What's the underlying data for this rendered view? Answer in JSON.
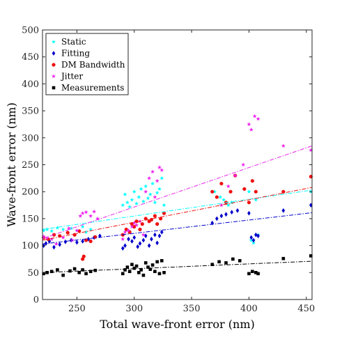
{
  "chart_data": {
    "type": "scatter",
    "title": "",
    "xlabel": "Total wave-front error (nm)",
    "ylabel": "Wave-front error (nm)",
    "xlim": [
      220,
      455
    ],
    "ylim": [
      0,
      500
    ],
    "xticks": [
      "250",
      "300",
      "350",
      "400",
      "450"
    ],
    "yticks": [
      "0",
      "50",
      "100",
      "150",
      "200",
      "250",
      "300",
      "350",
      "400",
      "450",
      "500"
    ],
    "xtick_values": [
      250,
      300,
      350,
      400,
      450
    ],
    "ytick_values": [
      0,
      50,
      100,
      150,
      200,
      250,
      300,
      350,
      400,
      450,
      500
    ],
    "grid": false,
    "legend_position": "top-left",
    "series": [
      {
        "name": "Static",
        "color": "#00ffff",
        "marker": "star",
        "points": [
          [
            221,
            128
          ],
          [
            224,
            130
          ],
          [
            228,
            127
          ],
          [
            233,
            133
          ],
          [
            238,
            130
          ],
          [
            245,
            132
          ],
          [
            250,
            128
          ],
          [
            255,
            135
          ],
          [
            258,
            125
          ],
          [
            262,
            130
          ],
          [
            290,
            175
          ],
          [
            292,
            195
          ],
          [
            294,
            180
          ],
          [
            296,
            172
          ],
          [
            298,
            185
          ],
          [
            300,
            200
          ],
          [
            302,
            178
          ],
          [
            304,
            190
          ],
          [
            306,
            205
          ],
          [
            308,
            182
          ],
          [
            310,
            210
          ],
          [
            312,
            188
          ],
          [
            314,
            195
          ],
          [
            316,
            215
          ],
          [
            318,
            180
          ],
          [
            320,
            198
          ],
          [
            322,
            205
          ],
          [
            324,
            225
          ],
          [
            326,
            175
          ],
          [
            370,
            200
          ],
          [
            375,
            190
          ],
          [
            378,
            185
          ],
          [
            382,
            175
          ],
          [
            385,
            180
          ],
          [
            400,
            200
          ],
          [
            402,
            110
          ],
          [
            404,
            105
          ],
          [
            406,
            185
          ],
          [
            408,
            120
          ],
          [
            454,
            200
          ]
        ],
        "trend": [
          [
            220,
            130
          ],
          [
            455,
            203
          ]
        ]
      },
      {
        "name": "Fitting",
        "color": "#0000cc",
        "marker": "diamond",
        "points": [
          [
            221,
            100
          ],
          [
            223,
            104
          ],
          [
            226,
            108
          ],
          [
            230,
            97
          ],
          [
            235,
            102
          ],
          [
            240,
            107
          ],
          [
            245,
            110
          ],
          [
            250,
            106
          ],
          [
            255,
            108
          ],
          [
            260,
            112
          ],
          [
            265,
            115
          ],
          [
            270,
            118
          ],
          [
            290,
            95
          ],
          [
            292,
            100
          ],
          [
            295,
            112
          ],
          [
            298,
            108
          ],
          [
            300,
            115
          ],
          [
            303,
            98
          ],
          [
            305,
            104
          ],
          [
            308,
            110
          ],
          [
            310,
            118
          ],
          [
            313,
            100
          ],
          [
            315,
            112
          ],
          [
            318,
            120
          ],
          [
            320,
            105
          ],
          [
            322,
            118
          ],
          [
            324,
            125
          ],
          [
            368,
            142
          ],
          [
            372,
            150
          ],
          [
            376,
            155
          ],
          [
            380,
            158
          ],
          [
            385,
            162
          ],
          [
            390,
            165
          ],
          [
            400,
            160
          ],
          [
            402,
            115
          ],
          [
            404,
            110
          ],
          [
            406,
            120
          ],
          [
            408,
            118
          ],
          [
            430,
            165
          ],
          [
            454,
            175
          ]
        ],
        "trend": [
          [
            220,
            103
          ],
          [
            455,
            161
          ]
        ]
      },
      {
        "name": "DM Bandwidth",
        "color": "#ee1111",
        "marker": "circle",
        "points": [
          [
            221,
            115
          ],
          [
            225,
            112
          ],
          [
            230,
            120
          ],
          [
            235,
            118
          ],
          [
            242,
            124
          ],
          [
            248,
            120
          ],
          [
            252,
            127
          ],
          [
            255,
            75
          ],
          [
            256,
            80
          ],
          [
            258,
            110
          ],
          [
            262,
            108
          ],
          [
            266,
            116
          ],
          [
            290,
            120
          ],
          [
            293,
            130
          ],
          [
            296,
            125
          ],
          [
            298,
            140
          ],
          [
            300,
            135
          ],
          [
            302,
            145
          ],
          [
            305,
            130
          ],
          [
            307,
            140
          ],
          [
            310,
            150
          ],
          [
            313,
            145
          ],
          [
            315,
            148
          ],
          [
            318,
            155
          ],
          [
            320,
            140
          ],
          [
            323,
            150
          ],
          [
            326,
            160
          ],
          [
            368,
            200
          ],
          [
            372,
            190
          ],
          [
            376,
            215
          ],
          [
            380,
            180
          ],
          [
            384,
            200
          ],
          [
            388,
            230
          ],
          [
            396,
            205
          ],
          [
            400,
            180
          ],
          [
            403,
            220
          ],
          [
            406,
            200
          ],
          [
            430,
            200
          ],
          [
            454,
            228
          ]
        ],
        "trend": [
          [
            220,
            110
          ],
          [
            455,
            208
          ]
        ]
      },
      {
        "name": "Jitter",
        "color": "#ee22ee",
        "marker": "star",
        "points": [
          [
            221,
            117
          ],
          [
            224,
            114
          ],
          [
            228,
            112
          ],
          [
            232,
            103
          ],
          [
            238,
            115
          ],
          [
            243,
            132
          ],
          [
            246,
            110
          ],
          [
            250,
            128
          ],
          [
            253,
            155
          ],
          [
            255,
            160
          ],
          [
            258,
            162
          ],
          [
            262,
            155
          ],
          [
            265,
            163
          ],
          [
            268,
            150
          ],
          [
            290,
            112
          ],
          [
            292,
            125
          ],
          [
            295,
            128
          ],
          [
            298,
            135
          ],
          [
            300,
            142
          ],
          [
            302,
            138
          ],
          [
            305,
            145
          ],
          [
            308,
            120
          ],
          [
            310,
            200
          ],
          [
            313,
            225
          ],
          [
            316,
            237
          ],
          [
            318,
            190
          ],
          [
            320,
            220
          ],
          [
            322,
            245
          ],
          [
            324,
            240
          ],
          [
            376,
            175
          ],
          [
            382,
            210
          ],
          [
            388,
            230
          ],
          [
            395,
            250
          ],
          [
            400,
            325
          ],
          [
            402,
            315
          ],
          [
            405,
            340
          ],
          [
            408,
            335
          ],
          [
            430,
            285
          ],
          [
            454,
            277
          ]
        ],
        "trend": [
          [
            220,
            113
          ],
          [
            455,
            285
          ]
        ]
      },
      {
        "name": "Measurements",
        "color": "#000000",
        "marker": "square",
        "points": [
          [
            221,
            48
          ],
          [
            224,
            50
          ],
          [
            228,
            52
          ],
          [
            233,
            55
          ],
          [
            238,
            45
          ],
          [
            244,
            53
          ],
          [
            248,
            57
          ],
          [
            252,
            50
          ],
          [
            255,
            55
          ],
          [
            258,
            48
          ],
          [
            262,
            52
          ],
          [
            266,
            54
          ],
          [
            290,
            48
          ],
          [
            292,
            55
          ],
          [
            294,
            60
          ],
          [
            296,
            52
          ],
          [
            298,
            65
          ],
          [
            300,
            58
          ],
          [
            302,
            62
          ],
          [
            304,
            50
          ],
          [
            306,
            55
          ],
          [
            308,
            45
          ],
          [
            310,
            68
          ],
          [
            312,
            60
          ],
          [
            314,
            56
          ],
          [
            316,
            64
          ],
          [
            318,
            52
          ],
          [
            320,
            70
          ],
          [
            322,
            48
          ],
          [
            324,
            72
          ],
          [
            326,
            50
          ],
          [
            368,
            65
          ],
          [
            374,
            70
          ],
          [
            380,
            68
          ],
          [
            386,
            75
          ],
          [
            392,
            72
          ],
          [
            400,
            48
          ],
          [
            403,
            52
          ],
          [
            406,
            50
          ],
          [
            408,
            48
          ],
          [
            430,
            76
          ],
          [
            454,
            81
          ]
        ],
        "trend": [
          [
            220,
            50
          ],
          [
            455,
            71
          ]
        ]
      }
    ]
  }
}
